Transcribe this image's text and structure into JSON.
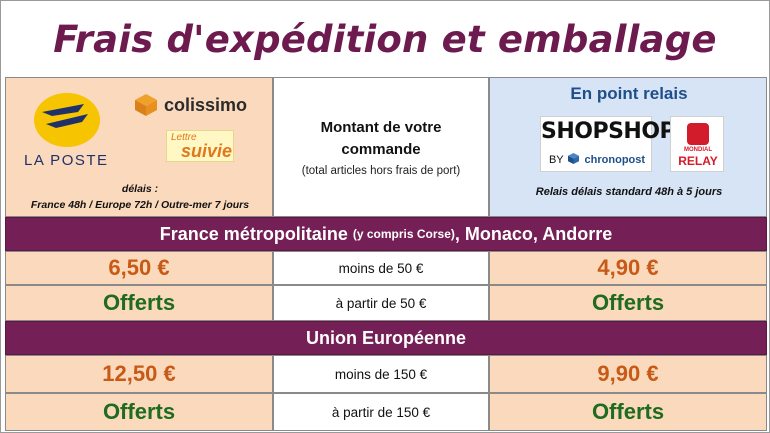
{
  "title": "Frais d'expédition et emballage",
  "header": {
    "left": {
      "laposte_label": "LA POSTE",
      "colissimo_label": "colissimo",
      "lettre_label_1": "Lettre",
      "lettre_label_2": "suivie",
      "delais_title": "délais :",
      "delais_text": "France 48h / Europe 72h / Outre-mer 7 jours"
    },
    "middle": {
      "line1": "Montant de votre",
      "line2": "commande",
      "subtext": "(total articles hors frais de port)"
    },
    "right": {
      "title": "En point relais",
      "shopshop_label": "SHOPSHOP",
      "by_label": "BY",
      "chronopost_label": "chronopost",
      "mondial_label": "MONDIAL",
      "relay_label": "RELAY",
      "delais_text": "Relais délais standard 48h à 5 jours"
    }
  },
  "sections": [
    {
      "title_main": "France métropolitaine",
      "title_small": "(y compris Corse)",
      "title_rest": ", Monaco, Andorre",
      "rows": [
        {
          "left": "6,50 €",
          "middle": "moins de 50  €",
          "right": "4,90 €",
          "style": "price"
        },
        {
          "left": "Offerts",
          "middle": "à partir de 50 €",
          "right": "Offerts",
          "style": "offer"
        }
      ]
    },
    {
      "title_main": "Union Européenne",
      "title_small": "",
      "title_rest": "",
      "rows": [
        {
          "left": "12,50 €",
          "middle": "moins de 150  €",
          "right": "9,90 €",
          "style": "price"
        },
        {
          "left": "Offerts",
          "middle": "à partir de 150 €",
          "right": "Offerts",
          "style": "offer"
        }
      ]
    }
  ],
  "colors": {
    "title": "#6d1a4f",
    "band": "#741f55",
    "peach": "#fbd9bd",
    "blue": "#d6e4f6",
    "price": "#c65a16",
    "offer": "#1f6b1f"
  },
  "icons": [
    "laposte-logo-icon",
    "colissimo-box-icon",
    "chronopost-cube-icon",
    "mondial-relay-logo-icon"
  ]
}
